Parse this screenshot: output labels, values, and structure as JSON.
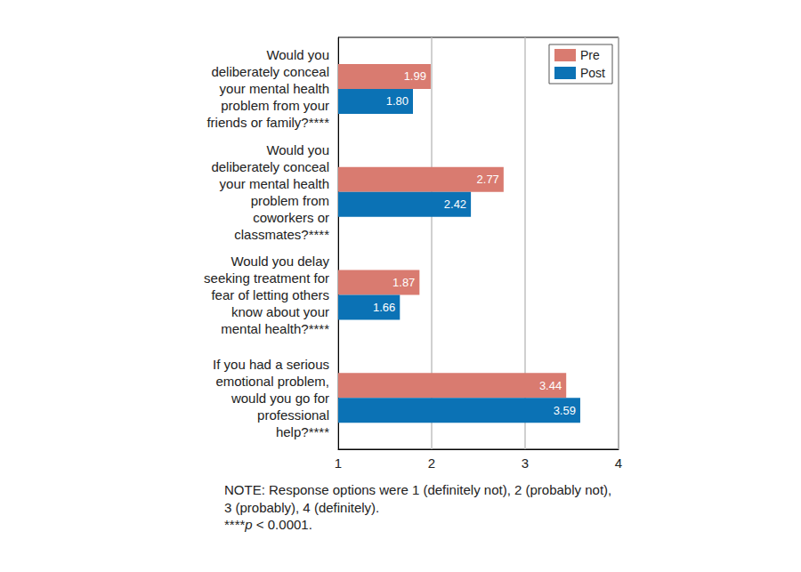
{
  "chart_data": {
    "type": "bar",
    "orientation": "horizontal",
    "categories": [
      "Would you\ndeliberately conceal\nyour mental health\nproblem from your\nfriends or family?****",
      "Would you\ndeliberately conceal\nyour mental health\nproblem from\ncoworkers or\nclassmates?****",
      "Would you delay\nseeking treatment for\nfear of letting others\nknow about your\nmental health?****",
      "If you had a serious\nemotional problem,\nwould you go for\nprofessional\nhelp?****"
    ],
    "series": [
      {
        "name": "Pre",
        "color": "#d97b70",
        "values": [
          1.99,
          2.77,
          1.87,
          3.44
        ],
        "value_labels": [
          "1.99",
          "2.77",
          "1.87",
          "3.44"
        ]
      },
      {
        "name": "Post",
        "color": "#0b72b5",
        "values": [
          1.8,
          2.42,
          1.66,
          3.59
        ],
        "value_labels": [
          "1.80",
          "2.42",
          "1.66",
          "3.59"
        ]
      }
    ],
    "xlim": [
      1,
      4
    ],
    "xticks": [
      1,
      2,
      3,
      4
    ],
    "grid": true,
    "legend": "upper right",
    "data_labels": true,
    "annotations": [
      "NOTE: Response options were 1 (definitely not), 2 (probably not),\n3 (probably), 4 (definitely).",
      "****p < 0.0001."
    ]
  }
}
